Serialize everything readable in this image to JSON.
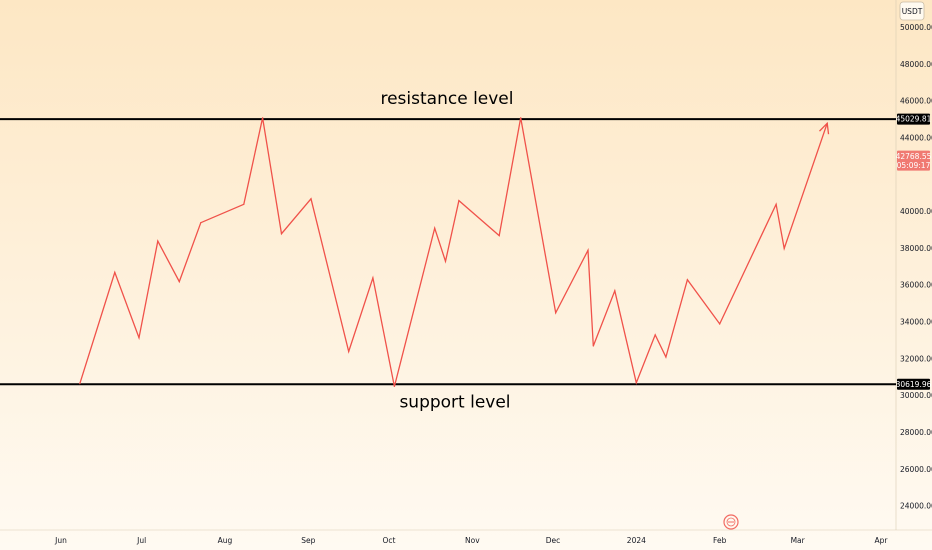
{
  "chart_data": {
    "type": "line",
    "currency": "USDT",
    "ylim": [
      22700,
      51500
    ],
    "y_ticks": [
      "50000.00",
      "48000.00",
      "46000.00",
      "44000.00",
      "40000.00",
      "38000.00",
      "36000.00",
      "34000.00",
      "32000.00",
      "30000.00",
      "28000.00",
      "26000.00",
      "24000.00"
    ],
    "x_ticks": [
      "Jun",
      "Jul",
      "Aug",
      "Sep",
      "Oct",
      "Nov",
      "Dec",
      "2024",
      "Feb",
      "Mar",
      "Apr"
    ],
    "x_tick_dates": [
      "2023-06-01",
      "2023-07-01",
      "2023-08-01",
      "2023-09-01",
      "2023-10-01",
      "2023-11-01",
      "2023-12-01",
      "2024-01-01",
      "2024-02-01",
      "2024-03-01",
      "2024-04-01"
    ],
    "series": [
      {
        "color": "#f0524a",
        "points": [
          {
            "x": "2023-06-08",
            "y": 30650
          },
          {
            "x": "2023-06-21",
            "y": 36700
          },
          {
            "x": "2023-06-30",
            "y": 33150
          },
          {
            "x": "2023-07-07",
            "y": 38400
          },
          {
            "x": "2023-07-15",
            "y": 36200
          },
          {
            "x": "2023-07-23",
            "y": 39400
          },
          {
            "x": "2023-08-08",
            "y": 40400
          },
          {
            "x": "2023-08-15",
            "y": 45100
          },
          {
            "x": "2023-08-22",
            "y": 38800
          },
          {
            "x": "2023-09-02",
            "y": 40700
          },
          {
            "x": "2023-09-16",
            "y": 32400
          },
          {
            "x": "2023-09-25",
            "y": 36400
          },
          {
            "x": "2023-10-03",
            "y": 30500
          },
          {
            "x": "2023-10-18",
            "y": 39100
          },
          {
            "x": "2023-10-22",
            "y": 37300
          },
          {
            "x": "2023-10-27",
            "y": 40600
          },
          {
            "x": "2023-11-11",
            "y": 38700
          },
          {
            "x": "2023-11-19",
            "y": 45100
          },
          {
            "x": "2023-12-02",
            "y": 34500
          },
          {
            "x": "2023-12-14",
            "y": 37900
          },
          {
            "x": "2023-12-16",
            "y": 32700
          },
          {
            "x": "2023-12-24",
            "y": 35700
          },
          {
            "x": "2024-01-01",
            "y": 30700
          },
          {
            "x": "2024-01-08",
            "y": 33300
          },
          {
            "x": "2024-01-12",
            "y": 32100
          },
          {
            "x": "2024-01-20",
            "y": 36300
          },
          {
            "x": "2024-02-01",
            "y": 33900
          },
          {
            "x": "2024-02-22",
            "y": 40400
          },
          {
            "x": "2024-02-25",
            "y": 38000
          },
          {
            "x": "2024-03-12",
            "y": 44800
          }
        ]
      }
    ],
    "resistance": {
      "value": 45029.81,
      "label": "45029.81",
      "annotation": "resistance level"
    },
    "support": {
      "value": 30619.96,
      "label": "30619.96",
      "annotation": "support level"
    },
    "current_price": {
      "value": 42768.55,
      "label": "42768.55",
      "countdown": "05:09:17"
    }
  },
  "colors": {
    "background_top": "#fde7c4",
    "background_bottom": "#fffaf2",
    "line": "#f0524a",
    "level_line": "#000000",
    "price_tag": "#f07a72"
  },
  "icons": {
    "watermark": "tradingview-logo-icon"
  }
}
